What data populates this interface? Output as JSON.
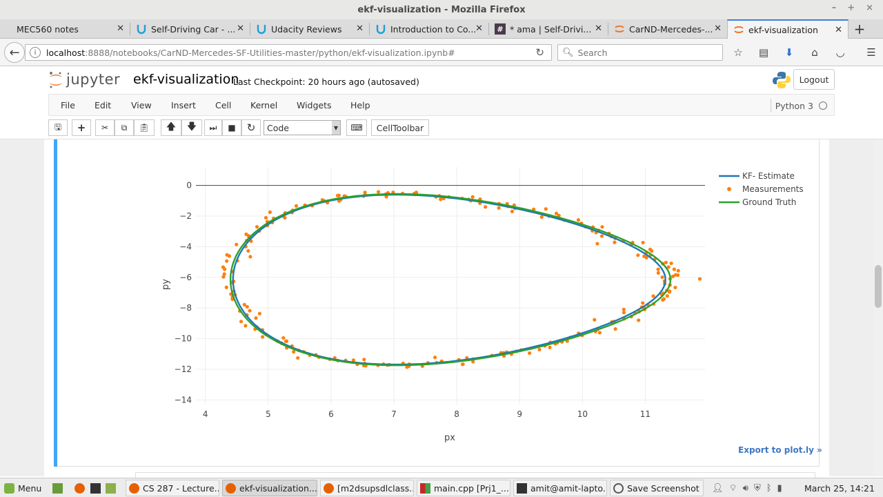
{
  "window": {
    "title": "ekf-visualization - Mozilla Firefox",
    "controls": [
      "–",
      "+",
      "×"
    ]
  },
  "tabs": [
    {
      "label": "MEC560 notes",
      "icon": "page-icon"
    },
    {
      "label": "Self-Driving Car - ...",
      "icon": "udacity-icon"
    },
    {
      "label": "Udacity Reviews",
      "icon": "udacity-icon"
    },
    {
      "label": "Introduction to Co...",
      "icon": "udacity-icon"
    },
    {
      "label": "* ama | Self-Drivi...",
      "icon": "slack-icon"
    },
    {
      "label": "CarND-Mercedes-...",
      "icon": "jupyter-icon"
    },
    {
      "label": "ekf-visualization",
      "icon": "jupyter-icon",
      "active": true
    }
  ],
  "newtab": "+",
  "nav": {
    "url_host": "localhost",
    "url_rest": ":8888/notebooks/CarND-Mercedes-SF-Utilities-master/python/ekf-visualization.ipynb#",
    "search_placeholder": "Search"
  },
  "jupyter": {
    "wordmark": "jupyter",
    "notebook_title": "ekf-visualization",
    "checkpoint": "Last Checkpoint: 20 hours ago (autosaved)",
    "logout": "Logout",
    "menu": [
      "File",
      "Edit",
      "View",
      "Insert",
      "Cell",
      "Kernel",
      "Widgets",
      "Help"
    ],
    "kernel": "Python 3",
    "cell_type": "Code",
    "celltoolbar": "CellToolbar",
    "export_link": "Export to plot.ly »"
  },
  "chart_data": {
    "type": "line",
    "xlabel": "px",
    "ylabel": "py",
    "xticks": [
      4,
      5,
      6,
      7,
      8,
      9,
      10,
      11
    ],
    "yticks": [
      0,
      -2,
      -4,
      -6,
      -8,
      -10,
      -12,
      -14
    ],
    "xlim": [
      3.85,
      11.95
    ],
    "ylim": [
      -14.3,
      1.2
    ],
    "grid": true,
    "legend_position": "top-right",
    "curve": "figure-eight: x(t) = 7.9 + 3.5*cos(t), y(t) = -6.15 - 5.4*sin(t) + 0.75*sin(2t) (approx.)",
    "series": [
      {
        "name": "KF- Estimate",
        "type": "line",
        "color": "#1f77b4"
      },
      {
        "name": "Measurements",
        "type": "scatter",
        "color": "#ff7f0e",
        "noise_sd_approx": 0.12
      },
      {
        "name": "Ground Truth",
        "type": "line",
        "color": "#2ca02c"
      }
    ]
  },
  "taskbar": {
    "menu": "Menu",
    "items": [
      {
        "label": "CS 287 - Lecture...",
        "active": false
      },
      {
        "label": "ekf-visualization...",
        "active": true
      },
      {
        "label": "[m2dsupsdlclass...",
        "active": false
      },
      {
        "label": "main.cpp [Prj1_...",
        "active": false
      },
      {
        "label": "amit@amit-lapto...",
        "active": false
      },
      {
        "label": "Save Screenshot",
        "active": false
      }
    ],
    "clock": "March 25, 14:21"
  }
}
